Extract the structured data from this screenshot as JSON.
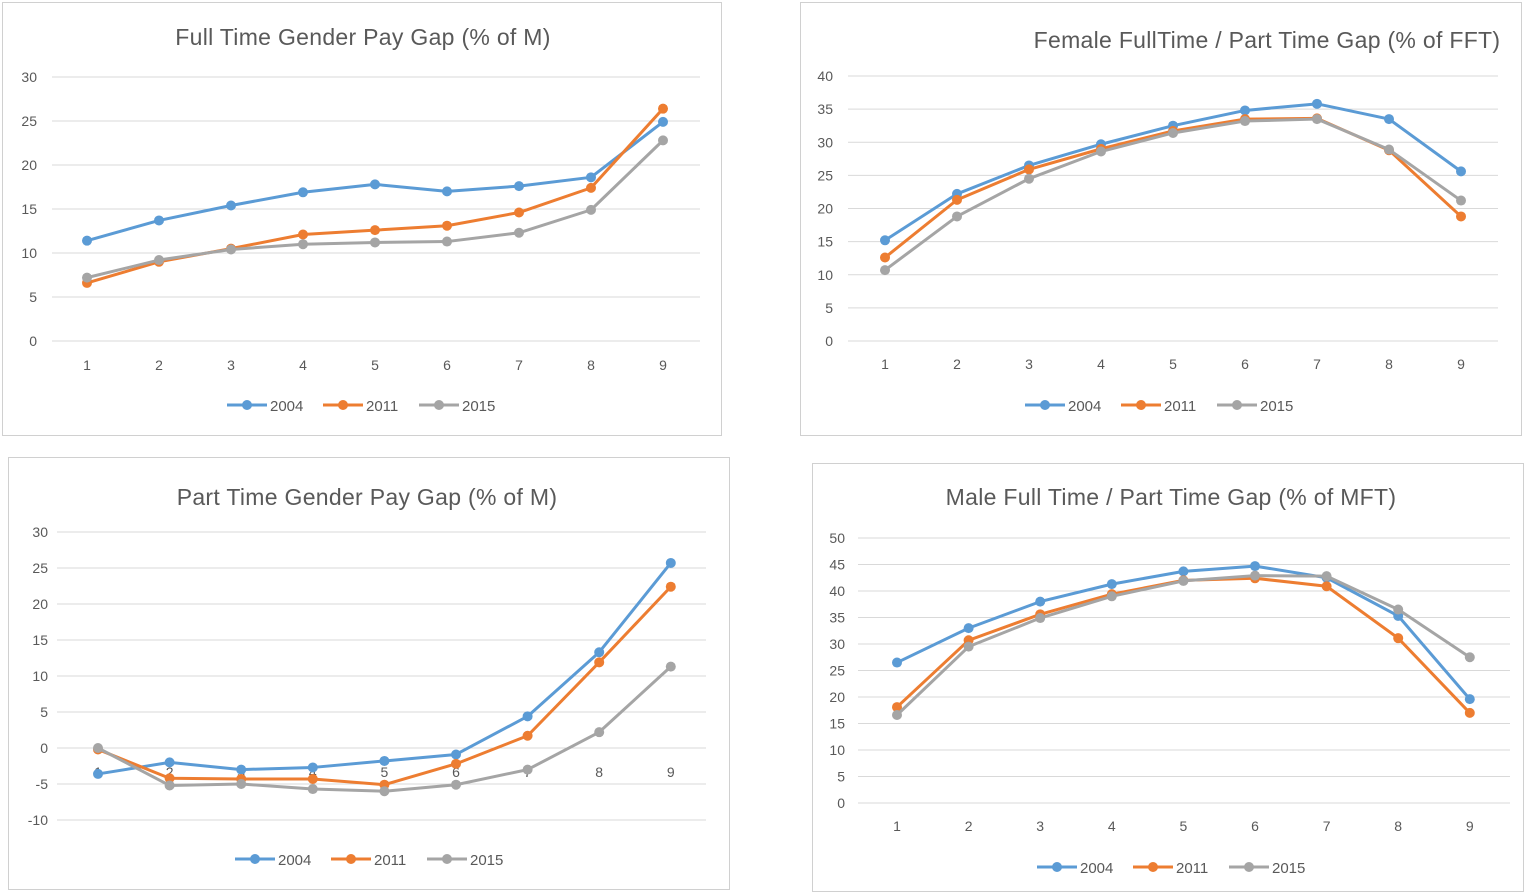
{
  "colors": {
    "2004": "#5b9bd5",
    "2011": "#ed7d31",
    "2015": "#a5a5a5",
    "grid": "#d9d9d9",
    "text": "#595959"
  },
  "chart_data": [
    {
      "type": "line",
      "title": "Full Time Gender Pay Gap (% of M)",
      "categories": [
        "1",
        "2",
        "3",
        "4",
        "5",
        "6",
        "7",
        "8",
        "9"
      ],
      "yticks": [
        "0",
        "5",
        "10",
        "15",
        "20",
        "25",
        "30"
      ],
      "ylim": [
        0,
        30
      ],
      "grid": true,
      "legend": "bottom",
      "series": [
        {
          "name": "2004",
          "color": "#5b9bd5",
          "values": [
            11.4,
            13.7,
            15.4,
            16.9,
            17.8,
            17.0,
            17.6,
            18.6,
            24.9
          ]
        },
        {
          "name": "2011",
          "color": "#ed7d31",
          "values": [
            6.6,
            9.0,
            10.5,
            12.1,
            12.6,
            13.1,
            14.6,
            17.4,
            26.4
          ]
        },
        {
          "name": "2015",
          "color": "#a5a5a5",
          "values": [
            7.2,
            9.2,
            10.4,
            11.0,
            11.2,
            11.3,
            12.3,
            14.9,
            22.8
          ]
        }
      ]
    },
    {
      "type": "line",
      "title": "Female FullTime / Part Time Gap (% of FFT)",
      "categories": [
        "1",
        "2",
        "3",
        "4",
        "5",
        "6",
        "7",
        "8",
        "9"
      ],
      "yticks": [
        "0",
        "5",
        "10",
        "15",
        "20",
        "25",
        "30",
        "35",
        "40"
      ],
      "ylim": [
        0,
        40
      ],
      "grid": true,
      "legend": "bottom",
      "series": [
        {
          "name": "2004",
          "color": "#5b9bd5",
          "values": [
            15.2,
            22.2,
            26.5,
            29.7,
            32.5,
            34.8,
            35.8,
            33.5,
            25.6
          ]
        },
        {
          "name": "2011",
          "color": "#ed7d31",
          "values": [
            12.6,
            21.3,
            25.9,
            29.0,
            31.7,
            33.5,
            33.6,
            28.8,
            18.8
          ]
        },
        {
          "name": "2015",
          "color": "#a5a5a5",
          "values": [
            10.7,
            18.8,
            24.5,
            28.6,
            31.4,
            33.2,
            33.5,
            28.9,
            21.2
          ]
        }
      ]
    },
    {
      "type": "line",
      "title": "Part Time Gender Pay Gap (% of M)",
      "categories": [
        "1",
        "2",
        "3",
        "4",
        "5",
        "6",
        "7",
        "8",
        "9"
      ],
      "yticks": [
        "-10",
        "-5",
        "0",
        "5",
        "10",
        "15",
        "20",
        "25",
        "30"
      ],
      "ylim": [
        -10,
        30
      ],
      "grid": true,
      "legend": "bottom",
      "series": [
        {
          "name": "2004",
          "color": "#5b9bd5",
          "values": [
            -3.6,
            -2.0,
            -3.0,
            -2.7,
            -1.8,
            -0.9,
            4.4,
            13.3,
            25.7
          ]
        },
        {
          "name": "2011",
          "color": "#ed7d31",
          "values": [
            -0.2,
            -4.2,
            -4.3,
            -4.3,
            -5.1,
            -2.2,
            1.7,
            11.9,
            22.4
          ]
        },
        {
          "name": "2015",
          "color": "#a5a5a5",
          "values": [
            0.0,
            -5.2,
            -5.0,
            -5.7,
            -6.0,
            -5.1,
            -3.0,
            2.2,
            11.3
          ]
        }
      ]
    },
    {
      "type": "line",
      "title": "Male Full Time / Part  Time Gap (% of MFT)",
      "categories": [
        "1",
        "2",
        "3",
        "4",
        "5",
        "6",
        "7",
        "8",
        "9"
      ],
      "yticks": [
        "0",
        "5",
        "10",
        "15",
        "20",
        "25",
        "30",
        "35",
        "40",
        "45",
        "50"
      ],
      "ylim": [
        0,
        50
      ],
      "grid": true,
      "legend": "bottom",
      "series": [
        {
          "name": "2004",
          "color": "#5b9bd5",
          "values": [
            26.5,
            33.0,
            38.0,
            41.3,
            43.7,
            44.7,
            42.5,
            35.3,
            19.6
          ]
        },
        {
          "name": "2011",
          "color": "#ed7d31",
          "values": [
            18.1,
            30.7,
            35.6,
            39.4,
            42.0,
            42.4,
            40.9,
            31.1,
            17.0
          ]
        },
        {
          "name": "2015",
          "color": "#a5a5a5",
          "values": [
            16.6,
            29.5,
            34.9,
            39.0,
            41.9,
            42.9,
            42.8,
            36.5,
            27.5
          ]
        }
      ]
    }
  ]
}
